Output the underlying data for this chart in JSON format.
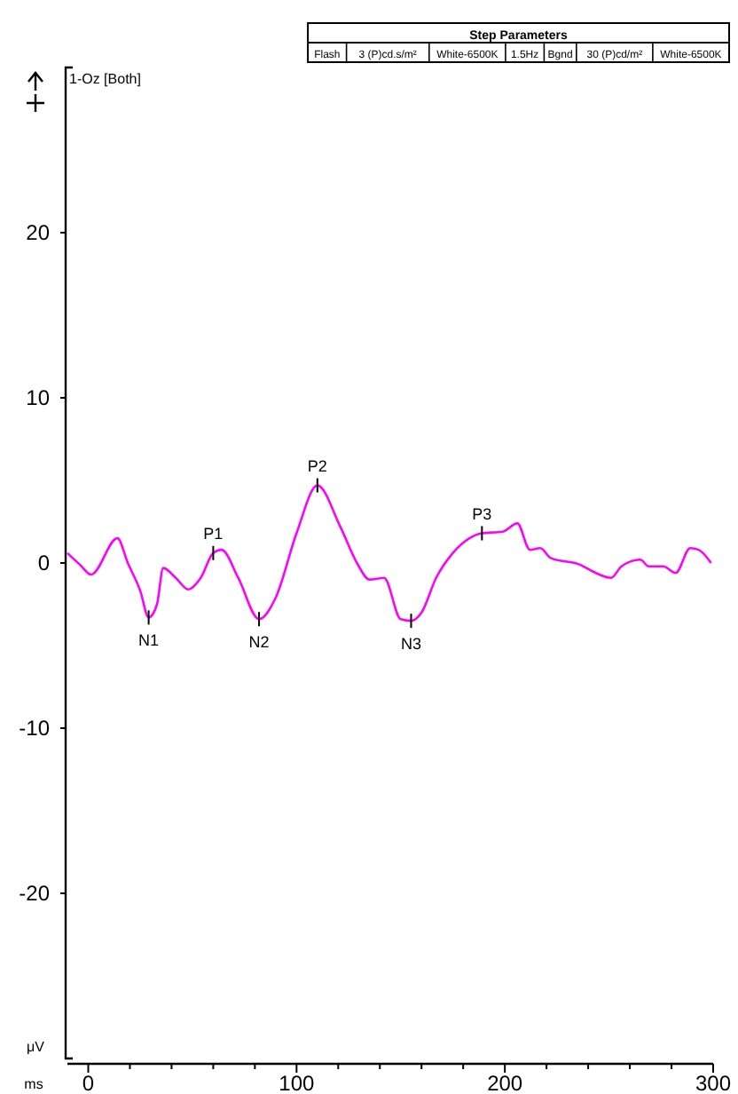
{
  "chart_data": {
    "type": "line",
    "xlabel": "ms",
    "ylabel": "μV",
    "xlim": [
      -10,
      300
    ],
    "ylim": [
      -30,
      30
    ],
    "xticks": [
      0,
      {
        "value": 20,
        "label": null
      },
      {
        "value": 40,
        "label": null
      },
      {
        "value": 60,
        "label": null
      },
      {
        "value": 80,
        "label": null
      },
      100,
      {
        "value": 120,
        "label": null
      },
      {
        "value": 140,
        "label": null
      },
      {
        "value": 160,
        "label": null
      },
      {
        "value": 180,
        "label": null
      },
      200,
      {
        "value": 220,
        "label": null
      },
      {
        "value": 240,
        "label": null
      },
      {
        "value": 260,
        "label": null
      },
      {
        "value": 280,
        "label": null
      },
      300
    ],
    "yticks": [
      -20,
      -10,
      0,
      10,
      20
    ],
    "grid": false,
    "marker": "none",
    "line_style": "solid",
    "series": [
      {
        "name": "1-Oz [Both]",
        "color": "#ff00ff",
        "x": [
          -10,
          -4,
          1.4,
          14,
          19,
          25,
          29,
          33,
          36,
          42,
          48,
          54,
          60,
          64,
          72,
          82,
          90,
          100,
          110,
          121,
          129,
          135,
          142,
          150,
          155,
          160,
          167,
          175,
          183,
          189,
          199,
          206,
          212,
          217,
          222,
          236,
          242,
          251,
          256,
          265,
          269,
          276,
          282,
          289,
          293,
          299
        ],
        "values": [
          0.6,
          -0.1,
          -0.7,
          1.5,
          0,
          -1.7,
          -3.3,
          -2.5,
          -0.3,
          -0.9,
          -1.6,
          -0.9,
          0.6,
          0.8,
          -0.9,
          -3.4,
          -2.1,
          1.8,
          4.7,
          2.2,
          0,
          -1,
          -0.9,
          -3.4,
          -3.5,
          -3,
          -0.9,
          0.6,
          1.5,
          1.8,
          1.9,
          2.4,
          0.8,
          0.9,
          0.3,
          -0.1,
          -0.5,
          -0.9,
          -0.2,
          0.2,
          -0.2,
          -0.2,
          -0.6,
          0.9,
          0.8,
          0
        ]
      }
    ],
    "annotations": [
      "Step Parameters",
      "Flash",
      "3 (P)cd.s/m²",
      "White-6500K",
      "1.5Hz",
      "Bgnd",
      "30 (P)cd/m²",
      "White-6500K",
      {
        "text": "N1",
        "x": 29,
        "y": -3.3
      },
      {
        "text": "P1",
        "x": 60,
        "y": 0.6
      },
      {
        "text": "N2",
        "x": 82,
        "y": -3.4
      },
      {
        "text": "P2",
        "x": 110,
        "y": 4.7
      },
      {
        "text": "N3",
        "x": 155,
        "y": -3.5
      },
      {
        "text": "P3",
        "x": 189,
        "y": 1.8
      }
    ]
  }
}
